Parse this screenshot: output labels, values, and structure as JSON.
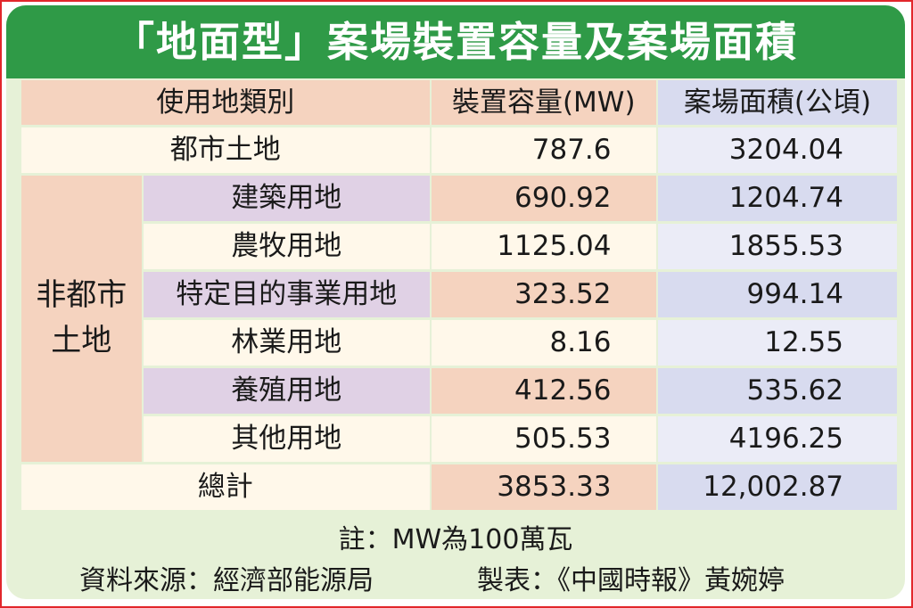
{
  "title": "「地面型」案場裝置容量及案場面積",
  "colors": {
    "border": "#e2262b",
    "title_bg": "#2f9a47",
    "panel_bg": "#e6f1d7",
    "header_bg": "#f5d3bf",
    "area_header_bg": "#d8dbef"
  },
  "chart_data": {
    "type": "table",
    "columns": [
      "使用地類別",
      "裝置容量(MW)",
      "案場面積(公頃)"
    ],
    "rows": [
      {
        "group": "",
        "category": "都市土地",
        "capacity": "787.6",
        "area": "3204.04"
      },
      {
        "group": "非都市土地",
        "category": "建築用地",
        "capacity": "690.92",
        "area": "1204.74"
      },
      {
        "group": "非都市土地",
        "category": "農牧用地",
        "capacity": "1125.04",
        "area": "1855.53"
      },
      {
        "group": "非都市土地",
        "category": "特定目的事業用地",
        "capacity": "323.52",
        "area": "994.14"
      },
      {
        "group": "非都市土地",
        "category": "林業用地",
        "capacity": "8.16",
        "area": "12.55"
      },
      {
        "group": "非都市土地",
        "category": "養殖用地",
        "capacity": "412.56",
        "area": "535.62"
      },
      {
        "group": "非都市土地",
        "category": "其他用地",
        "capacity": "505.53",
        "area": "4196.25"
      },
      {
        "group": "",
        "category": "總計",
        "capacity": "3853.33",
        "area": "12,002.87"
      }
    ],
    "group_label_line1": "非都市",
    "group_label_line2": "土地"
  },
  "note": "註：MW為100萬瓦",
  "source": "資料來源：經濟部能源局",
  "maker": "製表：《中國時報》黃婉婷"
}
